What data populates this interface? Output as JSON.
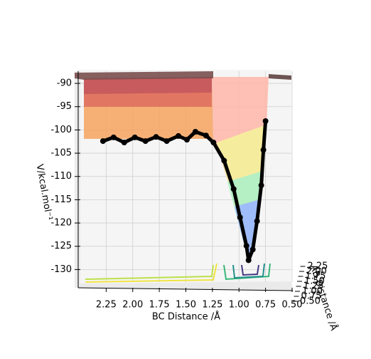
{
  "chart_data": {
    "type": "surface3d",
    "xlabel": "BC Distance /Å",
    "ylabel": "AB Distance /Å",
    "zlabel": "V/kcal.mol⁻¹",
    "xlim": [
      2.5,
      0.5
    ],
    "xticks": [
      2.25,
      {
        "value": 2.0,
        "label": "2.00"
      },
      1.75,
      {
        "value": 1.5,
        "label": "1.50"
      },
      1.25,
      {
        "value": 1.0,
        "label": "1.00"
      },
      0.75,
      {
        "value": 0.5,
        "label": "0.50"
      }
    ],
    "yticks": [
      {
        "value": 0.5,
        "label": "0.50"
      },
      0.75,
      {
        "value": 1.0,
        "label": "1.00"
      },
      1.25,
      {
        "value": 1.5,
        "label": "1.50"
      },
      1.75,
      {
        "value": 2.0,
        "label": "2.00"
      },
      2.25
    ],
    "zlim": [
      -133,
      -88
    ],
    "zticks": [
      -90,
      -95,
      -100,
      -105,
      -110,
      -115,
      -120,
      -125,
      -130
    ],
    "grid": true,
    "color": "#000000",
    "x": [
      2.28,
      2.18,
      2.08,
      1.98,
      1.88,
      1.78,
      1.68,
      1.57,
      1.49,
      1.41,
      1.31,
      1.24,
      1.14,
      1.05,
      0.99,
      0.93,
      0.91,
      0.87,
      0.83,
      0.79,
      0.77,
      0.75
    ],
    "values": [
      -102.4,
      -101.6,
      -102.7,
      -101.6,
      -102.4,
      -101.5,
      -102.4,
      -101.3,
      -102.1,
      -100.4,
      -101.2,
      -102.7,
      -106.6,
      -112.7,
      -118.8,
      -124.9,
      -128.0,
      -125.7,
      -119.6,
      -111.9,
      -104.3,
      -98.1
    ]
  }
}
